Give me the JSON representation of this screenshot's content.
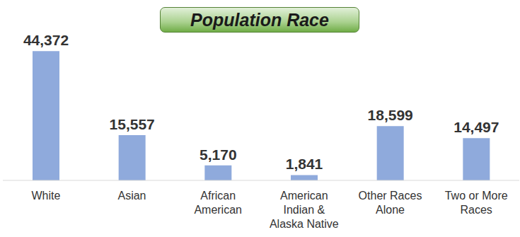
{
  "chart_data": {
    "type": "bar",
    "title": "Population Race",
    "categories": [
      "White",
      "Asian",
      "African American",
      "American Indian & Alaska Native",
      "Other Races Alone",
      "Two or More Races"
    ],
    "values": [
      44372,
      15557,
      5170,
      1841,
      18599,
      14497
    ],
    "value_labels": [
      "44,372",
      "15,557",
      "5,170",
      "1,841",
      "18,599",
      "14,497"
    ],
    "color": "#8faadc",
    "ylim": [
      0,
      50000
    ],
    "grid": false,
    "data_labels": true,
    "tick_labels": "x"
  }
}
